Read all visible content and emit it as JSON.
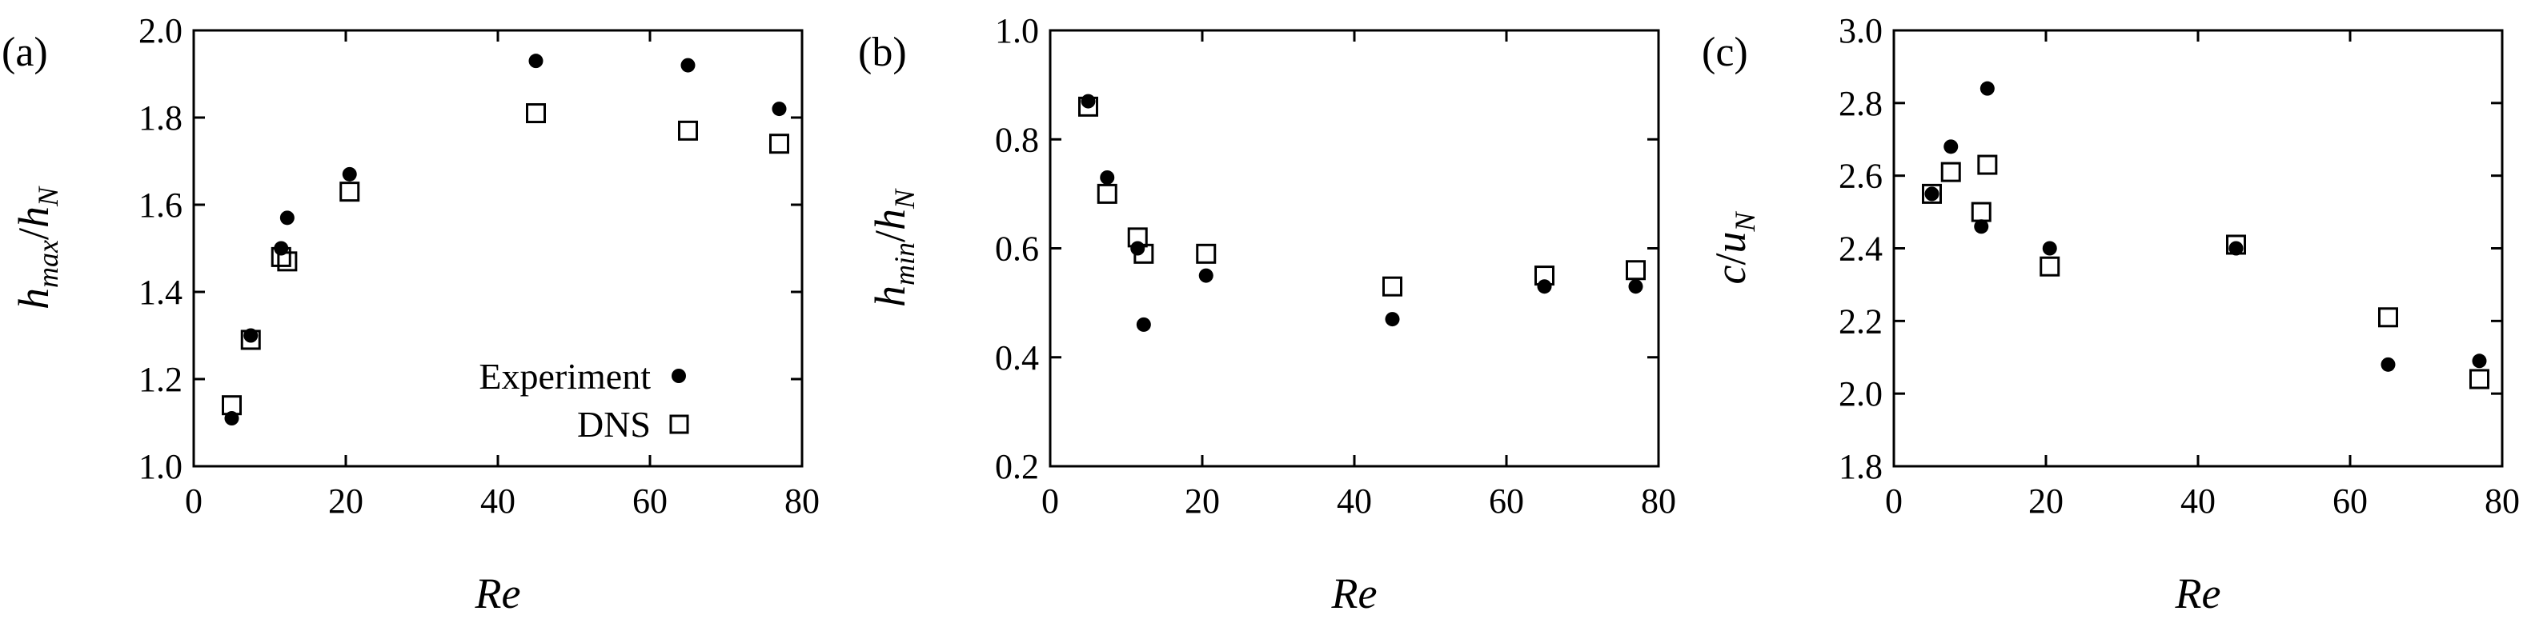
{
  "legend": {
    "experiment_label": "Experiment",
    "dns_label": "DNS",
    "placement": "bottom-right of panel (a)"
  },
  "chart_data": [
    {
      "type": "scatter",
      "panel_tag": "(a)",
      "xlabel": "Re",
      "ylabel": {
        "main": "h",
        "sub": "max",
        "sep": "/",
        "main2": "h",
        "sub2": "N"
      },
      "xlim": [
        0,
        80
      ],
      "ylim": [
        1.0,
        2.0
      ],
      "xticks": [
        0,
        20,
        40,
        60,
        80
      ],
      "yticks": [
        1.0,
        1.2,
        1.4,
        1.6,
        1.8,
        2.0
      ],
      "xtick_labels": [
        "0",
        "20",
        "40",
        "60",
        "80"
      ],
      "ytick_labels": [
        "1.0",
        "1.2",
        "1.4",
        "1.6",
        "1.8",
        "2.0"
      ],
      "series": [
        {
          "name": "Experiment",
          "marker": "filled-circle",
          "points": [
            [
              5,
              1.11
            ],
            [
              7.5,
              1.3
            ],
            [
              11.5,
              1.5
            ],
            [
              12.3,
              1.57
            ],
            [
              20.5,
              1.67
            ],
            [
              45,
              1.93
            ],
            [
              65,
              1.92
            ],
            [
              77,
              1.82
            ]
          ]
        },
        {
          "name": "DNS",
          "marker": "open-square",
          "points": [
            [
              5,
              1.14
            ],
            [
              7.5,
              1.29
            ],
            [
              11.5,
              1.48
            ],
            [
              12.3,
              1.47
            ],
            [
              20.5,
              1.63
            ],
            [
              45,
              1.81
            ],
            [
              65,
              1.77
            ],
            [
              77,
              1.74
            ]
          ]
        }
      ]
    },
    {
      "type": "scatter",
      "panel_tag": "(b)",
      "xlabel": "Re",
      "ylabel": {
        "main": "h",
        "sub": "min",
        "sep": "/",
        "main2": "h",
        "sub2": "N"
      },
      "xlim": [
        0,
        80
      ],
      "ylim": [
        0.2,
        1.0
      ],
      "xticks": [
        0,
        20,
        40,
        60,
        80
      ],
      "yticks": [
        0.2,
        0.4,
        0.6,
        0.8,
        1.0
      ],
      "xtick_labels": [
        "0",
        "20",
        "40",
        "60",
        "80"
      ],
      "ytick_labels": [
        "0.2",
        "0.4",
        "0.6",
        "0.8",
        "1.0"
      ],
      "series": [
        {
          "name": "Experiment",
          "marker": "filled-circle",
          "points": [
            [
              5,
              0.87
            ],
            [
              7.5,
              0.73
            ],
            [
              11.5,
              0.6
            ],
            [
              12.3,
              0.46
            ],
            [
              20.5,
              0.55
            ],
            [
              45,
              0.47
            ],
            [
              65,
              0.53
            ],
            [
              77,
              0.53
            ]
          ]
        },
        {
          "name": "DNS",
          "marker": "open-square",
          "points": [
            [
              5,
              0.86
            ],
            [
              7.5,
              0.7
            ],
            [
              11.5,
              0.62
            ],
            [
              12.3,
              0.59
            ],
            [
              20.5,
              0.59
            ],
            [
              45,
              0.53
            ],
            [
              65,
              0.55
            ],
            [
              77,
              0.56
            ]
          ]
        }
      ]
    },
    {
      "type": "scatter",
      "panel_tag": "(c)",
      "xlabel": "Re",
      "ylabel": {
        "main": "c",
        "sub": "",
        "sep": "/",
        "main2": "u",
        "sub2": "N"
      },
      "xlim": [
        0,
        80
      ],
      "ylim": [
        1.8,
        3.0
      ],
      "xticks": [
        0,
        20,
        40,
        60,
        80
      ],
      "yticks": [
        1.8,
        2.0,
        2.2,
        2.4,
        2.6,
        2.8,
        3.0
      ],
      "xtick_labels": [
        "0",
        "20",
        "40",
        "60",
        "80"
      ],
      "ytick_labels": [
        "1.8",
        "2.0",
        "2.2",
        "2.4",
        "2.6",
        "2.8",
        "3.0"
      ],
      "series": [
        {
          "name": "Experiment",
          "marker": "filled-circle",
          "points": [
            [
              5,
              2.55
            ],
            [
              7.5,
              2.68
            ],
            [
              11.5,
              2.46
            ],
            [
              12.3,
              2.84
            ],
            [
              20.5,
              2.4
            ],
            [
              45,
              2.4
            ],
            [
              65,
              2.08
            ],
            [
              77,
              2.09
            ]
          ]
        },
        {
          "name": "DNS",
          "marker": "open-square",
          "points": [
            [
              5,
              2.55
            ],
            [
              7.5,
              2.61
            ],
            [
              11.5,
              2.5
            ],
            [
              12.3,
              2.63
            ],
            [
              20.5,
              2.35
            ],
            [
              45,
              2.41
            ],
            [
              65,
              2.21
            ],
            [
              77,
              2.04
            ]
          ]
        }
      ]
    }
  ],
  "colors": {
    "ink": "#000000",
    "background": "#ffffff"
  }
}
